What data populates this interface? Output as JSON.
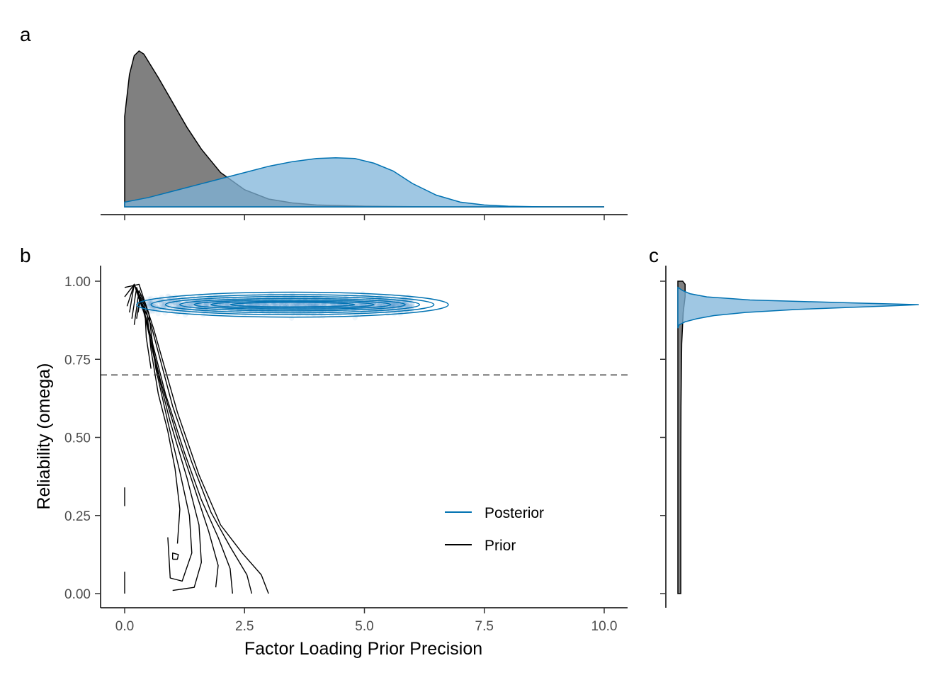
{
  "colors": {
    "prior_fill": "#808080",
    "prior_line": "#000000",
    "posterior_fill": "#7fb4d9",
    "posterior_line": "#0072b2",
    "reference_line": "#4d4d4d"
  },
  "chart_data": [
    {
      "panel": "a",
      "type": "area",
      "xlim": [
        0,
        10
      ],
      "xticks": [
        0,
        2.5,
        5,
        7.5,
        10
      ],
      "series": [
        {
          "name": "Prior",
          "x": [
            0,
            0.1,
            0.2,
            0.3,
            0.4,
            0.5,
            0.7,
            1.0,
            1.3,
            1.6,
            2.0,
            2.5,
            3.0,
            3.5,
            4.0,
            5.0,
            6.0,
            7.0,
            8.0,
            9.0,
            10.0
          ],
          "density": [
            0.58,
            0.85,
            0.97,
            1.0,
            0.98,
            0.93,
            0.83,
            0.67,
            0.51,
            0.37,
            0.22,
            0.11,
            0.05,
            0.025,
            0.012,
            0.004,
            0.001,
            0.0,
            0.0,
            0.0,
            0.0
          ]
        },
        {
          "name": "Posterior",
          "x": [
            0,
            0.5,
            1.0,
            1.5,
            2.0,
            2.5,
            3.0,
            3.5,
            4.0,
            4.4,
            4.8,
            5.2,
            5.6,
            6.0,
            6.5,
            7.0,
            7.5,
            8.0,
            8.5,
            9.0,
            10.0
          ],
          "density": [
            0.03,
            0.06,
            0.1,
            0.14,
            0.18,
            0.22,
            0.26,
            0.29,
            0.31,
            0.315,
            0.31,
            0.28,
            0.23,
            0.15,
            0.075,
            0.03,
            0.012,
            0.004,
            0.001,
            0.0,
            0.0
          ]
        }
      ]
    },
    {
      "panel": "b",
      "type": "scatter",
      "xlabel": "Factor Loading Prior Precision",
      "ylabel": "Reliability (omega)",
      "xlim": [
        0,
        10
      ],
      "ylim": [
        0,
        1
      ],
      "xticks": [
        "0.0",
        "2.5",
        "5.0",
        "7.5",
        "10.0"
      ],
      "yticks": [
        "0.00",
        "0.25",
        "0.50",
        "0.75",
        "1.00"
      ],
      "reference_line_y": 0.7,
      "legend": {
        "placement": "bottom-right",
        "entries": [
          "Posterior",
          "Prior"
        ]
      },
      "posterior_points": {
        "x_range": [
          0.3,
          6.0
        ],
        "y_center": 0.925,
        "y_sd": 0.018
      },
      "posterior_contours": {
        "center": [
          3.5,
          0.925
        ],
        "levels": [
          [
            3.25,
            0.04
          ],
          [
            2.95,
            0.032
          ],
          [
            2.65,
            0.026
          ],
          [
            2.35,
            0.02
          ],
          [
            2.05,
            0.015
          ],
          [
            1.7,
            0.011
          ],
          [
            1.3,
            0.007
          ]
        ]
      },
      "prior_contours_note": "density contours of prior draws",
      "prior_contours": [
        [
          [
            0,
            0.98
          ],
          [
            0.3,
            0.99
          ],
          [
            0.6,
            0.85
          ],
          [
            1.1,
            0.58
          ],
          [
            1.55,
            0.38
          ],
          [
            2.0,
            0.22
          ],
          [
            2.45,
            0.13
          ],
          [
            2.85,
            0.06
          ],
          [
            3.0,
            0.0
          ]
        ],
        [
          [
            0,
            0.95
          ],
          [
            0.2,
            0.99
          ],
          [
            0.55,
            0.86
          ],
          [
            1.0,
            0.6
          ],
          [
            1.4,
            0.42
          ],
          [
            1.8,
            0.26
          ],
          [
            2.2,
            0.15
          ],
          [
            2.55,
            0.06
          ],
          [
            2.65,
            0.0
          ]
        ],
        [
          [
            0.05,
            0.92
          ],
          [
            0.2,
            0.99
          ],
          [
            0.45,
            0.88
          ],
          [
            0.85,
            0.64
          ],
          [
            1.25,
            0.45
          ],
          [
            1.6,
            0.3
          ],
          [
            1.95,
            0.18
          ],
          [
            2.2,
            0.08
          ],
          [
            2.25,
            0.0
          ]
        ],
        [
          [
            0.1,
            0.9
          ],
          [
            0.2,
            0.99
          ],
          [
            0.4,
            0.9
          ],
          [
            0.75,
            0.68
          ],
          [
            1.1,
            0.5
          ],
          [
            1.45,
            0.34
          ],
          [
            1.75,
            0.2
          ],
          [
            1.95,
            0.09
          ],
          [
            1.9,
            0.02
          ]
        ],
        [
          [
            0.15,
            0.88
          ],
          [
            0.25,
            0.98
          ],
          [
            0.38,
            0.92
          ],
          [
            0.65,
            0.73
          ],
          [
            0.95,
            0.55
          ],
          [
            1.3,
            0.37
          ],
          [
            1.55,
            0.22
          ],
          [
            1.6,
            0.1
          ],
          [
            1.45,
            0.02
          ],
          [
            1.0,
            0.01
          ]
        ],
        [
          [
            0.2,
            0.86
          ],
          [
            0.3,
            0.97
          ],
          [
            0.5,
            0.9
          ],
          [
            0.65,
            0.72
          ],
          [
            0.9,
            0.55
          ],
          [
            1.15,
            0.39
          ],
          [
            1.35,
            0.25
          ],
          [
            1.4,
            0.13
          ],
          [
            1.2,
            0.04
          ],
          [
            0.95,
            0.05
          ],
          [
            0.9,
            0.18
          ]
        ],
        [
          [
            0.25,
            0.88
          ],
          [
            0.33,
            0.96
          ],
          [
            0.45,
            0.92
          ],
          [
            0.55,
            0.78
          ],
          [
            0.7,
            0.64
          ],
          [
            0.9,
            0.52
          ],
          [
            1.05,
            0.4
          ],
          [
            1.15,
            0.27
          ],
          [
            1.1,
            0.16
          ]
        ],
        [
          [
            0.28,
            0.9
          ],
          [
            0.33,
            0.95
          ],
          [
            0.42,
            0.92
          ],
          [
            0.45,
            0.82
          ],
          [
            0.55,
            0.72
          ]
        ],
        [
          [
            1.0,
            0.11
          ],
          [
            1.1,
            0.11
          ],
          [
            1.12,
            0.125
          ],
          [
            1.0,
            0.13
          ],
          [
            1.0,
            0.11
          ]
        ],
        [
          [
            0.0,
            0.0
          ],
          [
            0.0,
            0.07
          ]
        ],
        [
          [
            0.0,
            0.28
          ],
          [
            0.0,
            0.34
          ]
        ]
      ]
    },
    {
      "panel": "c",
      "type": "area",
      "orientation": "horizontal",
      "ylim": [
        0,
        1
      ],
      "series": [
        {
          "name": "Prior",
          "y": [
            0,
            0.05,
            0.2,
            0.4,
            0.6,
            0.8,
            0.9,
            0.95,
            0.99,
            1.0
          ],
          "density": [
            0.012,
            0.012,
            0.012,
            0.012,
            0.013,
            0.016,
            0.022,
            0.03,
            0.03,
            0.02
          ]
        },
        {
          "name": "Posterior",
          "y": [
            0.85,
            0.86,
            0.87,
            0.88,
            0.89,
            0.9,
            0.91,
            0.92,
            0.925,
            0.93,
            0.94,
            0.95,
            0.96,
            0.97,
            0.98
          ],
          "density": [
            0.0,
            0.005,
            0.03,
            0.08,
            0.15,
            0.28,
            0.5,
            0.85,
            1.0,
            0.75,
            0.3,
            0.12,
            0.05,
            0.02,
            0.0
          ]
        }
      ]
    }
  ],
  "panels": {
    "a": {
      "tag": "a"
    },
    "b": {
      "tag": "b"
    },
    "c": {
      "tag": "c"
    }
  }
}
